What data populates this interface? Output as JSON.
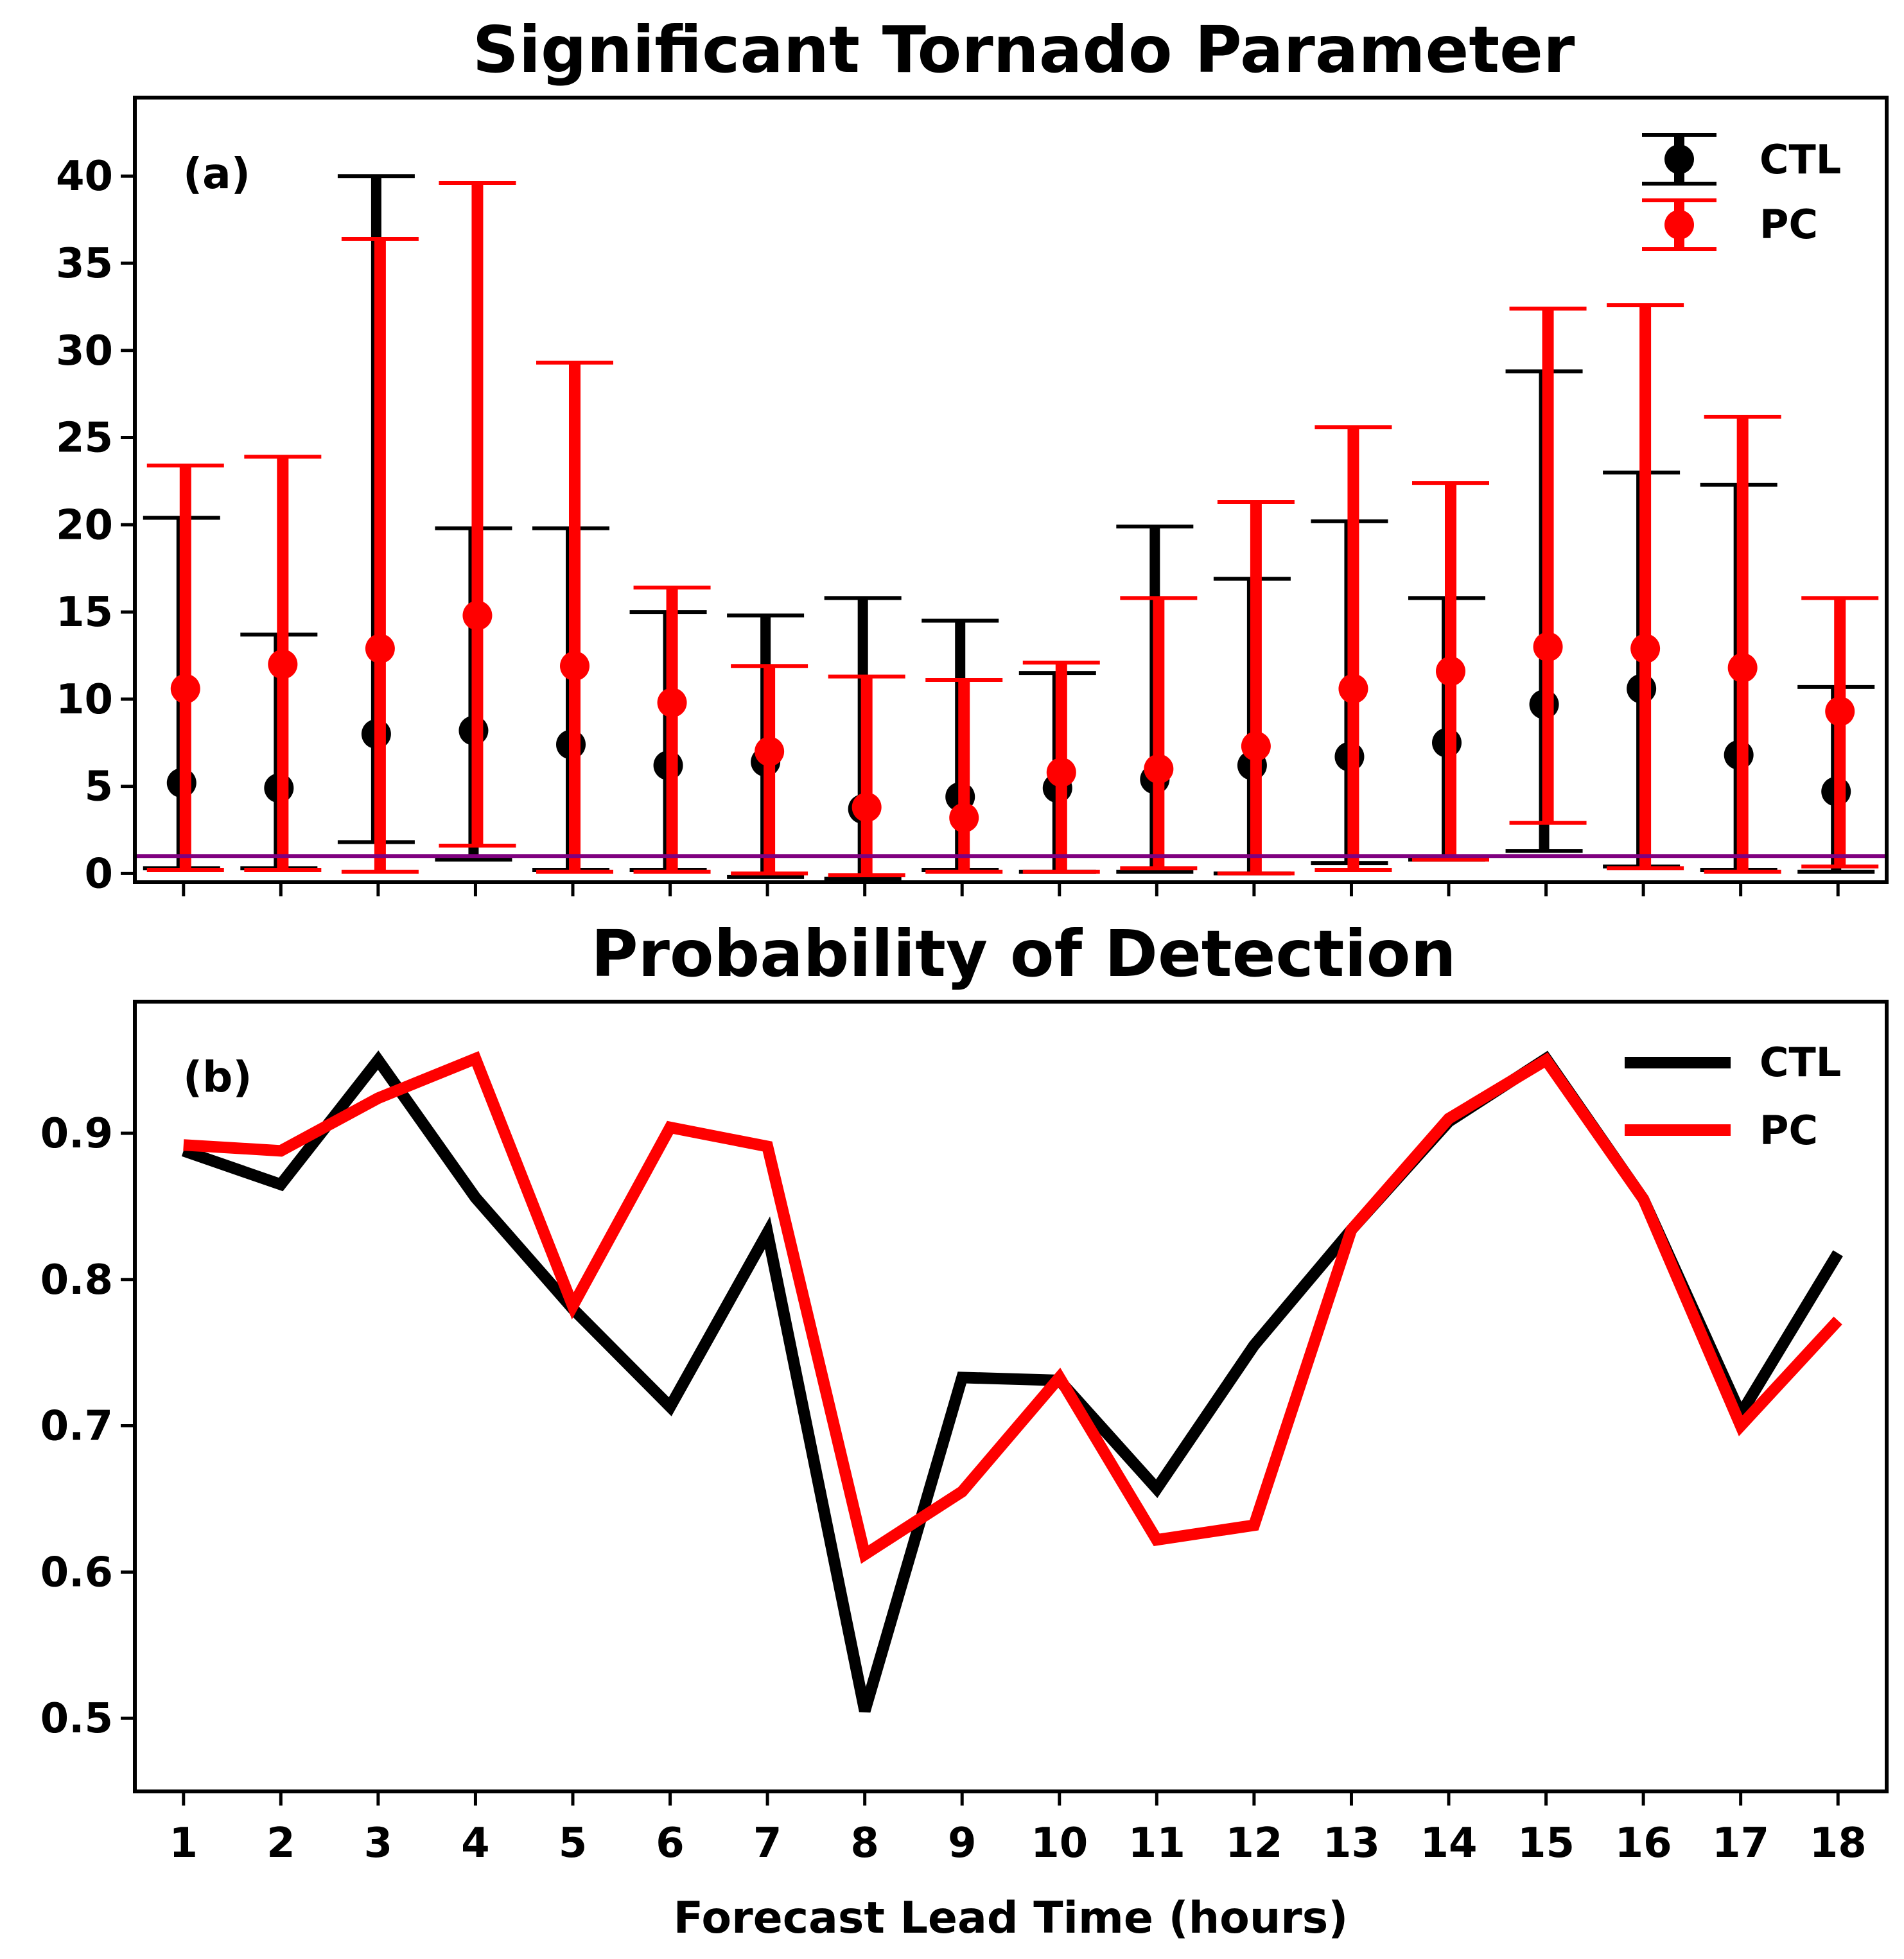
{
  "colors": {
    "ctl": "#000000",
    "pc": "#ff0000",
    "threshold": "#7f007f",
    "axes": "#000000",
    "background": "#ffffff"
  },
  "chart_data": [
    {
      "type": "errorbar",
      "title": "Significant Tornado Parameter",
      "panel_label": "(a)",
      "xlabel": "",
      "ylabel": "",
      "x": [
        1,
        2,
        3,
        4,
        5,
        6,
        7,
        8,
        9,
        10,
        11,
        12,
        13,
        14,
        15,
        16,
        17,
        18
      ],
      "xlim": [
        0.5,
        18.5
      ],
      "ylim": [
        -0.5,
        44.5
      ],
      "yticks": [
        0,
        5,
        10,
        15,
        20,
        25,
        30,
        35,
        40
      ],
      "ytick_labels": [
        "0",
        "5",
        "10",
        "15",
        "20",
        "25",
        "30",
        "35",
        "40"
      ],
      "threshold_line": 1,
      "legend": {
        "position": "top-right",
        "entries": [
          "CTL",
          "PC"
        ]
      },
      "series": [
        {
          "name": "CTL",
          "color": "#000000",
          "values": [
            5.2,
            4.9,
            8.0,
            8.2,
            7.4,
            6.2,
            6.4,
            3.7,
            4.4,
            4.9,
            5.4,
            6.2,
            6.7,
            7.5,
            9.7,
            10.6,
            6.8,
            4.7
          ],
          "upper": [
            20.4,
            13.7,
            40.0,
            19.8,
            19.8,
            15.0,
            14.8,
            15.8,
            14.5,
            11.5,
            19.9,
            16.9,
            20.2,
            15.8,
            28.8,
            23.0,
            22.3,
            10.7
          ],
          "lower": [
            0.3,
            0.3,
            1.8,
            0.8,
            0.2,
            0.2,
            -0.2,
            -0.3,
            0.2,
            0.1,
            0.1,
            0.0,
            0.6,
            0.8,
            1.3,
            0.4,
            0.2,
            0.1
          ]
        },
        {
          "name": "PC",
          "color": "#ff0000",
          "values": [
            10.6,
            12.0,
            12.9,
            14.8,
            11.9,
            9.8,
            7.0,
            3.8,
            3.2,
            5.8,
            6.0,
            7.3,
            10.6,
            11.6,
            13.0,
            12.9,
            11.8,
            9.3
          ],
          "upper": [
            23.4,
            23.9,
            36.4,
            39.6,
            29.3,
            16.4,
            11.9,
            11.3,
            11.1,
            12.1,
            15.8,
            21.3,
            25.6,
            22.4,
            32.4,
            32.6,
            26.2,
            15.8
          ],
          "lower": [
            0.2,
            0.2,
            0.1,
            1.6,
            0.1,
            0.1,
            0.0,
            -0.1,
            0.1,
            0.1,
            0.3,
            0.0,
            0.2,
            0.8,
            2.9,
            0.3,
            0.1,
            0.4
          ]
        }
      ]
    },
    {
      "type": "line",
      "title": "Probability of Detection",
      "panel_label": "(b)",
      "xlabel": "Forecast Lead Time (hours)",
      "ylabel": "",
      "x": [
        1,
        2,
        3,
        4,
        5,
        6,
        7,
        8,
        9,
        10,
        11,
        12,
        13,
        14,
        15,
        16,
        17,
        18
      ],
      "xtick_labels": [
        "1",
        "2",
        "3",
        "4",
        "5",
        "6",
        "7",
        "8",
        "9",
        "10",
        "11",
        "12",
        "13",
        "14",
        "15",
        "16",
        "17",
        "18"
      ],
      "xlim": [
        0.5,
        18.5
      ],
      "ylim": [
        0.45,
        0.99
      ],
      "yticks": [
        0.5,
        0.6,
        0.7,
        0.8,
        0.9
      ],
      "ytick_labels": [
        "0.5",
        "0.6",
        "0.7",
        "0.8",
        "0.9"
      ],
      "legend": {
        "position": "top-right",
        "entries": [
          "CTL",
          "PC"
        ]
      },
      "series": [
        {
          "name": "CTL",
          "color": "#000000",
          "values": [
            0.888,
            0.865,
            0.95,
            0.856,
            0.78,
            0.713,
            0.832,
            0.505,
            0.733,
            0.731,
            0.657,
            0.755,
            0.834,
            0.908,
            0.951,
            0.855,
            0.708,
            0.818
          ]
        },
        {
          "name": "PC",
          "color": "#ff0000",
          "values": [
            0.892,
            0.888,
            0.924,
            0.951,
            0.782,
            0.904,
            0.891,
            0.612,
            0.655,
            0.733,
            0.622,
            0.632,
            0.834,
            0.91,
            0.95,
            0.855,
            0.7,
            0.772
          ]
        }
      ]
    }
  ]
}
